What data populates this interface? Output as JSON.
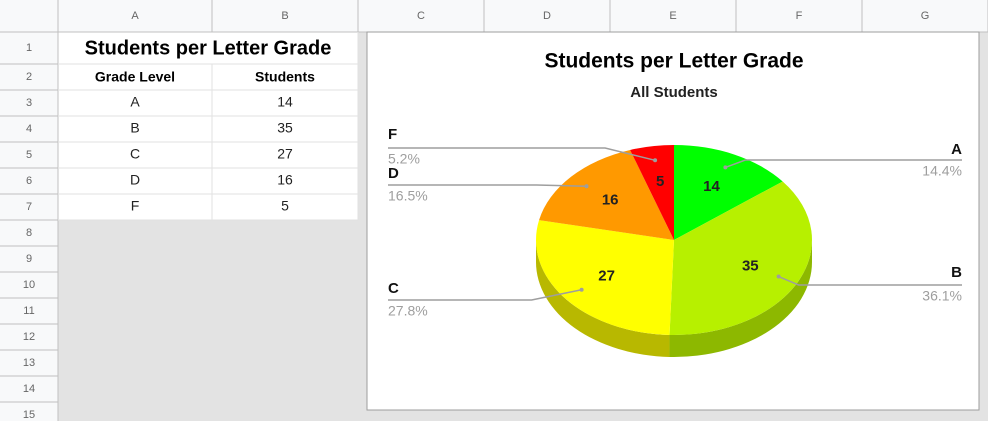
{
  "sheet": {
    "columns": [
      "A",
      "B",
      "C",
      "D",
      "E",
      "F",
      "G"
    ],
    "rows": [
      1,
      2,
      3,
      4,
      5,
      6,
      7,
      8,
      9,
      10,
      11,
      12,
      13,
      14,
      15
    ],
    "title": "Students per Letter Grade",
    "headers": [
      "Grade Level",
      "Students"
    ],
    "data": [
      [
        "A",
        14
      ],
      [
        "B",
        35
      ],
      [
        "C",
        27
      ],
      [
        "D",
        16
      ],
      [
        "F",
        5
      ]
    ]
  },
  "chart_data": {
    "type": "pie",
    "three_d": true,
    "title": "Students per Letter Grade",
    "subtitle": "All Students",
    "categories": [
      "A",
      "B",
      "C",
      "D",
      "F"
    ],
    "values": [
      14,
      35,
      27,
      16,
      5
    ],
    "percent_labels": [
      "14.4%",
      "36.1%",
      "27.8%",
      "16.5%",
      "5.2%"
    ],
    "colors": [
      "#00ff00",
      "#b7f000",
      "#ffff00",
      "#ff9900",
      "#ff0000"
    ],
    "side_colors": [
      "#00b300",
      "#8db800",
      "#b8b800",
      "#b86e00",
      "#b30000"
    ]
  }
}
